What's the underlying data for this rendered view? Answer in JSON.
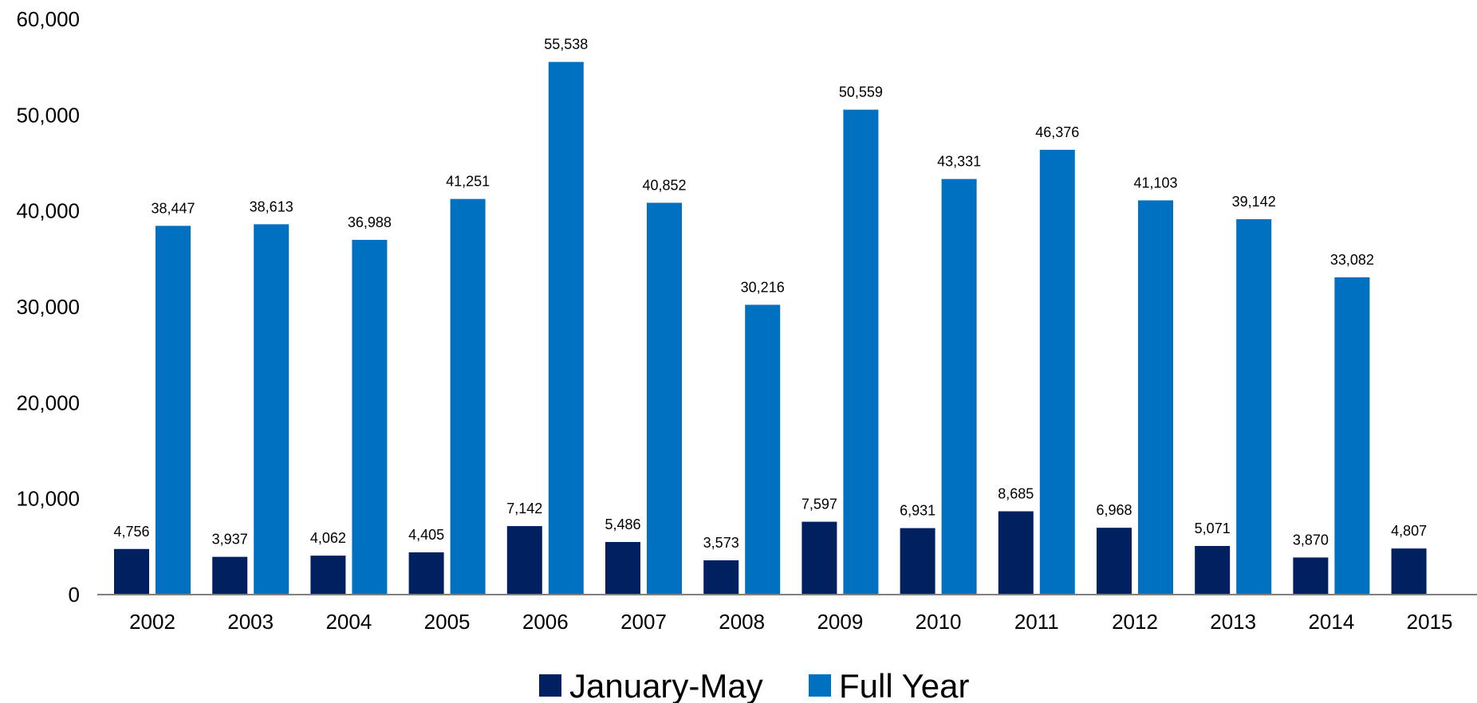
{
  "chart_data": {
    "type": "bar",
    "title": "",
    "xlabel": "",
    "ylabel": "",
    "categories": [
      "2002",
      "2003",
      "2004",
      "2005",
      "2006",
      "2007",
      "2008",
      "2009",
      "2010",
      "2011",
      "2012",
      "2013",
      "2014",
      "2015"
    ],
    "series": [
      {
        "name": "January-May",
        "color": "#002060",
        "values": [
          4756,
          3937,
          4062,
          4405,
          7142,
          5486,
          3573,
          7597,
          6931,
          8685,
          6968,
          5071,
          3870,
          4807
        ],
        "labels": [
          "4,756",
          "3,937",
          "4,062",
          "4,405",
          "7,142",
          "5,486",
          "3,573",
          "7,597",
          "6,931",
          "8,685",
          "6,968",
          "5,071",
          "3,870",
          "4,807"
        ]
      },
      {
        "name": "Full Year",
        "color": "#0070C0",
        "values": [
          38447,
          38613,
          36988,
          41251,
          55538,
          40852,
          30216,
          50559,
          43331,
          46376,
          41103,
          39142,
          33082,
          null
        ],
        "labels": [
          "38,447",
          "38,613",
          "36,988",
          "41,251",
          "55,538",
          "40,852",
          "30,216",
          "50,559",
          "43,331",
          "46,376",
          "41,103",
          "39,142",
          "33,082",
          ""
        ]
      }
    ],
    "ylim": [
      0,
      60000
    ],
    "yticks": [
      0,
      10000,
      20000,
      30000,
      40000,
      50000,
      60000
    ],
    "ytick_labels": [
      "0",
      "10,000",
      "20,000",
      "30,000",
      "40,000",
      "50,000",
      "60,000"
    ],
    "grid": false,
    "legend": {
      "position": "bottom-center",
      "entries": [
        "January-May",
        "Full Year"
      ]
    },
    "axis_color": "#808080"
  }
}
